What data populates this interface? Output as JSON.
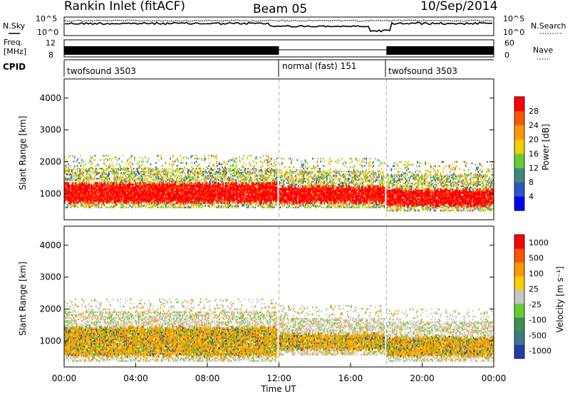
{
  "header": {
    "station": "Rankin Inlet (fitACF)",
    "beam": "Beam 05",
    "date": "10/Sep/2014"
  },
  "top_panels": {
    "nsky_label": "N.Sky",
    "nsearch_label": "N.Search",
    "noise_ticks": [
      "10^5",
      "10^0"
    ],
    "freq_label_1": "Freq.",
    "freq_label_2": "[MHz]",
    "freq_ticks": [
      "12",
      "8"
    ],
    "nave_label": "Nave",
    "nave_ticks": [
      "60",
      "0"
    ],
    "cpid_label": "CPID",
    "cpid_segments": [
      {
        "text": "twofsound 3503",
        "start_hour": 0
      },
      {
        "text": "normal (fast) 151",
        "start_hour": 12
      },
      {
        "text": "twofsound 3503",
        "start_hour": 18
      }
    ]
  },
  "chart_data": [
    {
      "type": "heatmap",
      "title": "",
      "variable": "Power",
      "xlabel": "",
      "ylabel": "Slant Range [km]",
      "xlim": [
        0,
        24
      ],
      "ylim": [
        180,
        4600
      ],
      "yticks": [
        1000,
        2000,
        3000,
        4000
      ],
      "colorbar": {
        "label": "Power [dB]",
        "ticks": [
          "4",
          "8",
          "12",
          "16",
          "20",
          "24",
          "28"
        ],
        "colors": [
          "#0000ff",
          "#2c57c8",
          "#3f8a74",
          "#66cc33",
          "#f0d000",
          "#ff9900",
          "#ff5500",
          "#ff0000"
        ]
      },
      "dominant_bands": [
        {
          "from_hour": 0,
          "to_hour": 11.9,
          "range_km": [
            700,
            1300
          ],
          "level_db": 26
        },
        {
          "from_hour": 12,
          "to_hour": 17.9,
          "range_km": [
            700,
            1200
          ],
          "level_db": 24
        },
        {
          "from_hour": 18,
          "to_hour": 24,
          "range_km": [
            600,
            1100
          ],
          "level_db": 26
        }
      ]
    },
    {
      "type": "heatmap",
      "title": "",
      "variable": "Velocity",
      "xlabel": "Time UT",
      "ylabel": "Slant Range [km]",
      "xlim": [
        0,
        24
      ],
      "ylim": [
        180,
        4600
      ],
      "xticks": [
        "00:00",
        "04:00",
        "08:00",
        "12:00",
        "16:00",
        "20:00",
        "00:00"
      ],
      "yticks": [
        1000,
        2000,
        3000,
        4000
      ],
      "colorbar": {
        "label": "Velocity [m s⁻¹]",
        "ticks": [
          "1000",
          "500",
          "100",
          "25",
          "-25",
          "-100",
          "-500",
          "-1000"
        ],
        "colors": [
          "#1f3fa8",
          "#3a7a8a",
          "#3f8f4f",
          "#66cc33",
          "#c8c8c8",
          "#ffcc00",
          "#ff9900",
          "#ff5500",
          "#ff0000"
        ]
      },
      "dominant_bands": [
        {
          "from_hour": 0,
          "to_hour": 11.9,
          "range_km": [
            500,
            1400
          ],
          "velocity": -200
        },
        {
          "from_hour": 12,
          "to_hour": 17.9,
          "range_km": [
            700,
            1200
          ],
          "velocity": -100
        },
        {
          "from_hour": 18,
          "to_hour": 24,
          "range_km": [
            500,
            1100
          ],
          "velocity": -150
        }
      ]
    }
  ]
}
